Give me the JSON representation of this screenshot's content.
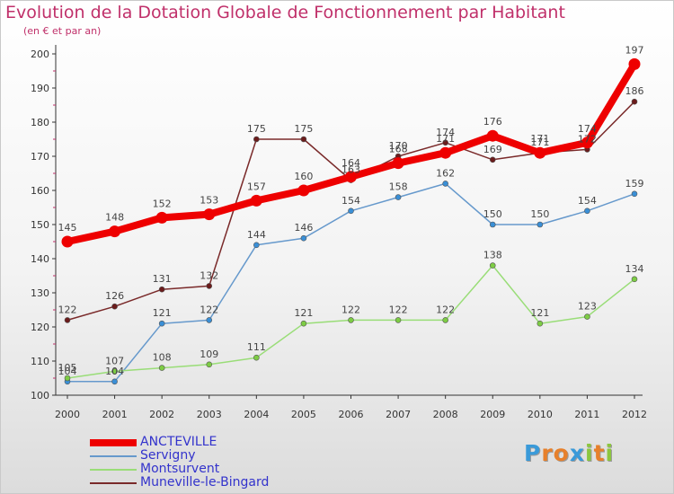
{
  "title": "Evolution de la Dotation Globale de Fonctionnement par Habitant",
  "subtitle": "(en € et par an)",
  "logo": {
    "text": "Proxiti",
    "letter_colors": [
      "#3a9ad9",
      "#e7802b",
      "#e7802b",
      "#3a9ad9",
      "#8cc63f",
      "#e7802b",
      "#8cc63f"
    ]
  },
  "chart_data": {
    "type": "line",
    "x": [
      "2000",
      "2001",
      "2002",
      "2003",
      "2004",
      "2005",
      "2006",
      "2007",
      "2008",
      "2009",
      "2010",
      "2011",
      "2012"
    ],
    "ylim": [
      100,
      200
    ],
    "yticks": [
      "100",
      "110",
      "120",
      "130",
      "140",
      "150",
      "160",
      "170",
      "180",
      "190",
      "200"
    ],
    "grid": false,
    "legend_position": "bottom-left",
    "series": [
      {
        "name": "ANCTEVILLE",
        "color": "#ee0000",
        "marker": "#ee0000",
        "width": 8,
        "values": [
          145,
          148,
          152,
          153,
          157,
          160,
          164,
          168,
          171,
          176,
          171,
          174,
          197
        ]
      },
      {
        "name": "Servigny",
        "color": "#6699cc",
        "marker": "#3a8fd6",
        "width": 1.5,
        "values": [
          104,
          104,
          121,
          122,
          144,
          146,
          154,
          158,
          162,
          150,
          150,
          154,
          159
        ]
      },
      {
        "name": "Montsurvent",
        "color": "#99dd77",
        "marker": "#7dcc44",
        "width": 1.5,
        "values": [
          105,
          107,
          108,
          109,
          111,
          121,
          122,
          122,
          122,
          138,
          121,
          123,
          134
        ]
      },
      {
        "name": "Muneville-le-Bingard",
        "color": "#7a2a2a",
        "marker": "#6b1c1c",
        "width": 1.5,
        "values": [
          122,
          126,
          131,
          132,
          175,
          175,
          163,
          170,
          174,
          169,
          171,
          172,
          186
        ]
      }
    ]
  }
}
